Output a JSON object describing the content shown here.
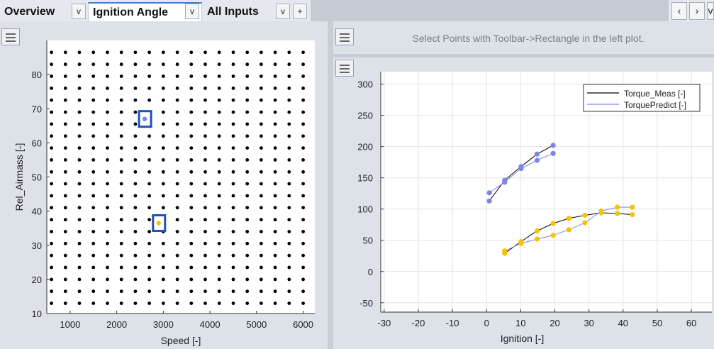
{
  "tabs": [
    {
      "label": "Overview"
    },
    {
      "label": "Ignition Angle"
    },
    {
      "label": "All Inputs"
    }
  ],
  "tab_menu_glyph": "v",
  "add_tab_glyph": "+",
  "nav": {
    "prev": "‹",
    "next": "›",
    "more": "v"
  },
  "right_top": {
    "hint": "Select Points with Toolbar->Rectangle in the left plot."
  },
  "colors": {
    "measured": "#000000",
    "predicted": "#7b86e8",
    "selected_low": "#f5c400",
    "selected_high": "#7b86e8",
    "box": "#1f4fb8"
  },
  "chart_data": [
    {
      "type": "scatter",
      "xlabel": "Speed [-]",
      "ylabel": "Rel_Airmass [-]",
      "xticks": [
        "1000",
        "2000",
        "3000",
        "4000",
        "5000",
        "6000"
      ],
      "yticks": [
        "10",
        "20",
        "30",
        "40",
        "50",
        "60",
        "70",
        "80"
      ],
      "xlim": [
        500,
        6250
      ],
      "ylim": [
        10,
        90
      ],
      "grid_x": [
        600,
        6000,
        300
      ],
      "grid_y": [
        13,
        87,
        3.5
      ],
      "selected_points": [
        {
          "x": 2600,
          "y": 67,
          "color": "#7b86e8"
        },
        {
          "x": 2900,
          "y": 36.5,
          "color": "#f5c400"
        }
      ]
    },
    {
      "type": "line",
      "xlabel": "Ignition [-]",
      "ylabel": "",
      "xticks": [
        "-30",
        "-20",
        "-10",
        "0",
        "10",
        "20",
        "30",
        "40",
        "50",
        "60"
      ],
      "yticks": [
        "-50",
        "0",
        "50",
        "100",
        "150",
        "200",
        "250",
        "300"
      ],
      "xlim": [
        -31,
        66
      ],
      "ylim": [
        -65,
        320
      ],
      "grid": true,
      "legend": {
        "placement": "top-right",
        "items": [
          "Torque_Meas [-]",
          "TorquePredict [-]"
        ]
      },
      "series": [
        {
          "name": "Torque_Meas [-]",
          "group": "high",
          "x": [
            0.8,
            5.3,
            10.1,
            14.8,
            19.5
          ],
          "y": [
            113,
            146,
            168,
            188,
            202
          ]
        },
        {
          "name": "TorquePredict [-]",
          "group": "high",
          "x": [
            0.8,
            5.3,
            10.1,
            14.8,
            19.5
          ],
          "y": [
            126,
            143,
            165,
            178,
            189
          ]
        },
        {
          "name": "Torque_Meas [-]",
          "group": "low",
          "x": [
            5.3,
            10.1,
            14.8,
            19.5,
            24.1,
            28.8,
            33.6,
            38.3,
            42.7
          ],
          "y": [
            29,
            48,
            65,
            77,
            85,
            90,
            94,
            93,
            91
          ]
        },
        {
          "name": "TorquePredict [-]",
          "group": "low",
          "x": [
            5.3,
            10.1,
            14.8,
            19.5,
            24.1,
            28.8,
            33.6,
            38.3,
            42.7
          ],
          "y": [
            33,
            45,
            52,
            58,
            67,
            78,
            97,
            103,
            103
          ]
        }
      ]
    }
  ]
}
